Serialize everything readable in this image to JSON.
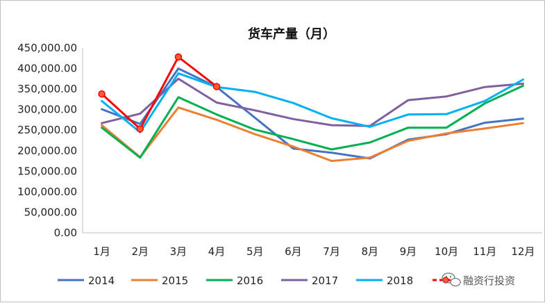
{
  "chart_data": {
    "type": "line",
    "title": "货车产量（月）",
    "xlabel": "",
    "ylabel": "",
    "categories": [
      "1月",
      "2月",
      "3月",
      "4月",
      "5月",
      "6月",
      "7月",
      "8月",
      "9月",
      "10月",
      "11月",
      "12月"
    ],
    "ylim": [
      0,
      450000
    ],
    "yticks": [
      "0.00",
      "50,000.00",
      "100,000.00",
      "150,000.00",
      "200,000.00",
      "250,000.00",
      "300,000.00",
      "350,000.00",
      "400,000.00",
      "450,000.00"
    ],
    "grid": false,
    "legend_position": "bottom",
    "series": [
      {
        "name": "2014",
        "color": "#4472C4",
        "values": [
          301000,
          265000,
          400000,
          355000,
          280000,
          205000,
          195000,
          181000,
          227000,
          240000,
          268000,
          278000
        ]
      },
      {
        "name": "2015",
        "color": "#ED7D31",
        "values": [
          262000,
          184000,
          305000,
          275000,
          240000,
          210000,
          175000,
          183000,
          224000,
          242000,
          254000,
          267000
        ]
      },
      {
        "name": "2016",
        "color": "#00B050",
        "values": [
          256000,
          183000,
          330000,
          288000,
          251000,
          228000,
          203000,
          220000,
          256000,
          256000,
          315000,
          358000
        ]
      },
      {
        "name": "2017",
        "color": "#7F5FA0",
        "values": [
          267000,
          290000,
          375000,
          317000,
          298000,
          277000,
          262000,
          260000,
          323000,
          332000,
          355000,
          363000
        ]
      },
      {
        "name": "2018",
        "color": "#00B0F0",
        "values": [
          321000,
          245000,
          388000,
          355000,
          343000,
          316000,
          279000,
          258000,
          288000,
          289000,
          321000,
          373000
        ]
      },
      {
        "name": "",
        "color": "#FF0000",
        "dashed_legend": true,
        "markers": true,
        "values": [
          338000,
          253000,
          428000,
          356000,
          null,
          null,
          null,
          null,
          null,
          null,
          null,
          null
        ]
      }
    ]
  },
  "watermark": {
    "text": "融资行投资",
    "icon": "wechat-icon"
  }
}
